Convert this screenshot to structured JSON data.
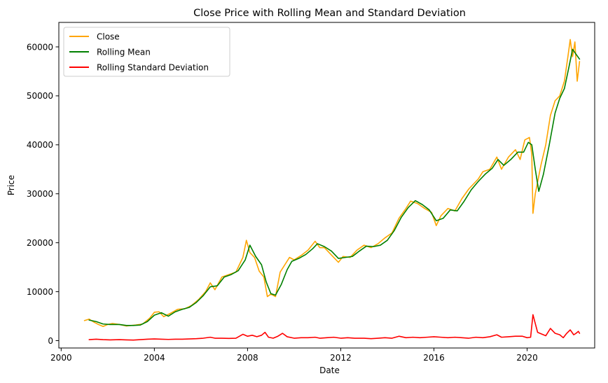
{
  "chart_data": {
    "type": "line",
    "title": "Close Price with Rolling Mean and Standard Deviation",
    "xlabel": "Date",
    "ylabel": "Price",
    "x_unit": "year",
    "xlim": [
      1999.9,
      2022.9
    ],
    "ylim": [
      -1500,
      65000
    ],
    "xticks": [
      2000,
      2004,
      2008,
      2012,
      2016,
      2020
    ],
    "xtick_labels": [
      "2000",
      "2004",
      "2008",
      "2012",
      "2016",
      "2020"
    ],
    "yticks": [
      0,
      10000,
      20000,
      30000,
      40000,
      50000,
      60000
    ],
    "ytick_labels": [
      "0",
      "10000",
      "20000",
      "30000",
      "40000",
      "50000",
      "60000"
    ],
    "grid": false,
    "legend_position": "top-left",
    "series": [
      {
        "name": "Close",
        "color": "#ffa500",
        "points": [
          [
            2001.0,
            4100
          ],
          [
            2001.2,
            4400
          ],
          [
            2001.4,
            3800
          ],
          [
            2001.6,
            3300
          ],
          [
            2001.8,
            2900
          ],
          [
            2002.0,
            3300
          ],
          [
            2002.2,
            3500
          ],
          [
            2002.5,
            3300
          ],
          [
            2002.8,
            3000
          ],
          [
            2003.0,
            3100
          ],
          [
            2003.2,
            3200
          ],
          [
            2003.5,
            3400
          ],
          [
            2003.8,
            4600
          ],
          [
            2004.0,
            5800
          ],
          [
            2004.2,
            5900
          ],
          [
            2004.4,
            4900
          ],
          [
            2004.7,
            5600
          ],
          [
            2005.0,
            6400
          ],
          [
            2005.3,
            6500
          ],
          [
            2005.6,
            7200
          ],
          [
            2005.9,
            8400
          ],
          [
            2006.2,
            10000
          ],
          [
            2006.4,
            11800
          ],
          [
            2006.6,
            10400
          ],
          [
            2006.9,
            13000
          ],
          [
            2007.2,
            13500
          ],
          [
            2007.5,
            14000
          ],
          [
            2007.8,
            17000
          ],
          [
            2007.95,
            20500
          ],
          [
            2008.1,
            18000
          ],
          [
            2008.3,
            17000
          ],
          [
            2008.5,
            14200
          ],
          [
            2008.7,
            13000
          ],
          [
            2008.85,
            9000
          ],
          [
            2009.0,
            9500
          ],
          [
            2009.2,
            9000
          ],
          [
            2009.4,
            14000
          ],
          [
            2009.6,
            15500
          ],
          [
            2009.8,
            17000
          ],
          [
            2010.0,
            16500
          ],
          [
            2010.3,
            17400
          ],
          [
            2010.6,
            18500
          ],
          [
            2010.9,
            20300
          ],
          [
            2011.1,
            19000
          ],
          [
            2011.3,
            19000
          ],
          [
            2011.6,
            17500
          ],
          [
            2011.9,
            16000
          ],
          [
            2012.1,
            17200
          ],
          [
            2012.4,
            17000
          ],
          [
            2012.7,
            18500
          ],
          [
            2013.0,
            19500
          ],
          [
            2013.3,
            19000
          ],
          [
            2013.6,
            19800
          ],
          [
            2013.9,
            21000
          ],
          [
            2014.2,
            22000
          ],
          [
            2014.5,
            25000
          ],
          [
            2014.8,
            27000
          ],
          [
            2015.0,
            28500
          ],
          [
            2015.3,
            28000
          ],
          [
            2015.6,
            27000
          ],
          [
            2015.9,
            26200
          ],
          [
            2016.1,
            23500
          ],
          [
            2016.3,
            25500
          ],
          [
            2016.6,
            27000
          ],
          [
            2016.9,
            26500
          ],
          [
            2017.2,
            29000
          ],
          [
            2017.5,
            31000
          ],
          [
            2017.9,
            33000
          ],
          [
            2018.1,
            34500
          ],
          [
            2018.4,
            35000
          ],
          [
            2018.7,
            37500
          ],
          [
            2018.9,
            35000
          ],
          [
            2019.2,
            37500
          ],
          [
            2019.5,
            39000
          ],
          [
            2019.7,
            37000
          ],
          [
            2019.9,
            41000
          ],
          [
            2020.1,
            41500
          ],
          [
            2020.2,
            38000
          ],
          [
            2020.25,
            26000
          ],
          [
            2020.35,
            30000
          ],
          [
            2020.6,
            36000
          ],
          [
            2020.8,
            40000
          ],
          [
            2021.0,
            46000
          ],
          [
            2021.2,
            49000
          ],
          [
            2021.4,
            50000
          ],
          [
            2021.6,
            53000
          ],
          [
            2021.75,
            58000
          ],
          [
            2021.85,
            61500
          ],
          [
            2021.95,
            58000
          ],
          [
            2022.05,
            61000
          ],
          [
            2022.15,
            53000
          ],
          [
            2022.25,
            57000
          ]
        ]
      },
      {
        "name": "Rolling Mean",
        "color": "#008000",
        "points": [
          [
            2001.2,
            4200
          ],
          [
            2001.5,
            3900
          ],
          [
            2001.8,
            3400
          ],
          [
            2002.1,
            3300
          ],
          [
            2002.5,
            3300
          ],
          [
            2002.8,
            3100
          ],
          [
            2003.1,
            3100
          ],
          [
            2003.4,
            3200
          ],
          [
            2003.7,
            3900
          ],
          [
            2004.0,
            5200
          ],
          [
            2004.3,
            5700
          ],
          [
            2004.6,
            5000
          ],
          [
            2004.9,
            5900
          ],
          [
            2005.2,
            6400
          ],
          [
            2005.5,
            6800
          ],
          [
            2005.8,
            7800
          ],
          [
            2006.1,
            9200
          ],
          [
            2006.4,
            11000
          ],
          [
            2006.7,
            11200
          ],
          [
            2007.0,
            13000
          ],
          [
            2007.3,
            13500
          ],
          [
            2007.6,
            14300
          ],
          [
            2007.9,
            16500
          ],
          [
            2008.1,
            19500
          ],
          [
            2008.35,
            17200
          ],
          [
            2008.6,
            15500
          ],
          [
            2008.8,
            12000
          ],
          [
            2009.0,
            9600
          ],
          [
            2009.2,
            9300
          ],
          [
            2009.45,
            11500
          ],
          [
            2009.7,
            14500
          ],
          [
            2009.9,
            16200
          ],
          [
            2010.2,
            16800
          ],
          [
            2010.5,
            17600
          ],
          [
            2010.8,
            18800
          ],
          [
            2011.0,
            19800
          ],
          [
            2011.3,
            19200
          ],
          [
            2011.6,
            18300
          ],
          [
            2011.9,
            16800
          ],
          [
            2012.2,
            17000
          ],
          [
            2012.5,
            17200
          ],
          [
            2012.8,
            18300
          ],
          [
            2013.1,
            19300
          ],
          [
            2013.4,
            19200
          ],
          [
            2013.7,
            19500
          ],
          [
            2014.0,
            20500
          ],
          [
            2014.3,
            22500
          ],
          [
            2014.6,
            25200
          ],
          [
            2014.9,
            27200
          ],
          [
            2015.2,
            28600
          ],
          [
            2015.5,
            27800
          ],
          [
            2015.8,
            26700
          ],
          [
            2016.1,
            24500
          ],
          [
            2016.4,
            25000
          ],
          [
            2016.7,
            26700
          ],
          [
            2017.0,
            26500
          ],
          [
            2017.3,
            28500
          ],
          [
            2017.6,
            30800
          ],
          [
            2017.9,
            32500
          ],
          [
            2018.2,
            34000
          ],
          [
            2018.5,
            35200
          ],
          [
            2018.75,
            37000
          ],
          [
            2019.0,
            35800
          ],
          [
            2019.3,
            37000
          ],
          [
            2019.6,
            38500
          ],
          [
            2019.85,
            38500
          ],
          [
            2020.05,
            40500
          ],
          [
            2020.2,
            40000
          ],
          [
            2020.35,
            35000
          ],
          [
            2020.5,
            30500
          ],
          [
            2020.7,
            34000
          ],
          [
            2020.95,
            40000
          ],
          [
            2021.2,
            46500
          ],
          [
            2021.4,
            49500
          ],
          [
            2021.6,
            51500
          ],
          [
            2021.8,
            56000
          ],
          [
            2021.95,
            59500
          ],
          [
            2022.1,
            58500
          ],
          [
            2022.25,
            57500
          ]
        ]
      },
      {
        "name": "Rolling Standard Deviation",
        "color": "#ff0000",
        "points": [
          [
            2001.2,
            200
          ],
          [
            2001.5,
            300
          ],
          [
            2001.8,
            200
          ],
          [
            2002.1,
            150
          ],
          [
            2002.5,
            200
          ],
          [
            2002.8,
            150
          ],
          [
            2003.1,
            120
          ],
          [
            2003.4,
            200
          ],
          [
            2003.7,
            300
          ],
          [
            2004.0,
            350
          ],
          [
            2004.3,
            300
          ],
          [
            2004.6,
            250
          ],
          [
            2004.9,
            300
          ],
          [
            2005.2,
            300
          ],
          [
            2005.5,
            350
          ],
          [
            2005.8,
            400
          ],
          [
            2006.1,
            500
          ],
          [
            2006.4,
            700
          ],
          [
            2006.6,
            500
          ],
          [
            2006.9,
            500
          ],
          [
            2007.2,
            450
          ],
          [
            2007.5,
            500
          ],
          [
            2007.8,
            1300
          ],
          [
            2008.0,
            900
          ],
          [
            2008.2,
            1100
          ],
          [
            2008.4,
            800
          ],
          [
            2008.6,
            1100
          ],
          [
            2008.75,
            1700
          ],
          [
            2008.9,
            700
          ],
          [
            2009.1,
            500
          ],
          [
            2009.3,
            900
          ],
          [
            2009.5,
            1500
          ],
          [
            2009.7,
            800
          ],
          [
            2010.0,
            500
          ],
          [
            2010.3,
            600
          ],
          [
            2010.6,
            600
          ],
          [
            2010.9,
            700
          ],
          [
            2011.1,
            500
          ],
          [
            2011.4,
            600
          ],
          [
            2011.7,
            700
          ],
          [
            2012.0,
            500
          ],
          [
            2012.3,
            600
          ],
          [
            2012.6,
            500
          ],
          [
            2013.0,
            500
          ],
          [
            2013.3,
            400
          ],
          [
            2013.6,
            500
          ],
          [
            2013.9,
            600
          ],
          [
            2014.2,
            500
          ],
          [
            2014.5,
            900
          ],
          [
            2014.8,
            600
          ],
          [
            2015.1,
            700
          ],
          [
            2015.4,
            600
          ],
          [
            2015.7,
            700
          ],
          [
            2016.0,
            800
          ],
          [
            2016.3,
            700
          ],
          [
            2016.6,
            600
          ],
          [
            2016.9,
            700
          ],
          [
            2017.2,
            600
          ],
          [
            2017.5,
            500
          ],
          [
            2017.8,
            700
          ],
          [
            2018.1,
            600
          ],
          [
            2018.4,
            800
          ],
          [
            2018.7,
            1200
          ],
          [
            2018.9,
            700
          ],
          [
            2019.2,
            800
          ],
          [
            2019.5,
            900
          ],
          [
            2019.8,
            900
          ],
          [
            2020.0,
            600
          ],
          [
            2020.15,
            700
          ],
          [
            2020.25,
            5300
          ],
          [
            2020.35,
            3500
          ],
          [
            2020.45,
            1700
          ],
          [
            2020.6,
            1400
          ],
          [
            2020.8,
            1000
          ],
          [
            2021.0,
            2500
          ],
          [
            2021.2,
            1500
          ],
          [
            2021.4,
            1200
          ],
          [
            2021.55,
            600
          ],
          [
            2021.7,
            1500
          ],
          [
            2021.85,
            2200
          ],
          [
            2022.0,
            1200
          ],
          [
            2022.1,
            1500
          ],
          [
            2022.2,
            1900
          ],
          [
            2022.25,
            1500
          ]
        ]
      }
    ]
  }
}
